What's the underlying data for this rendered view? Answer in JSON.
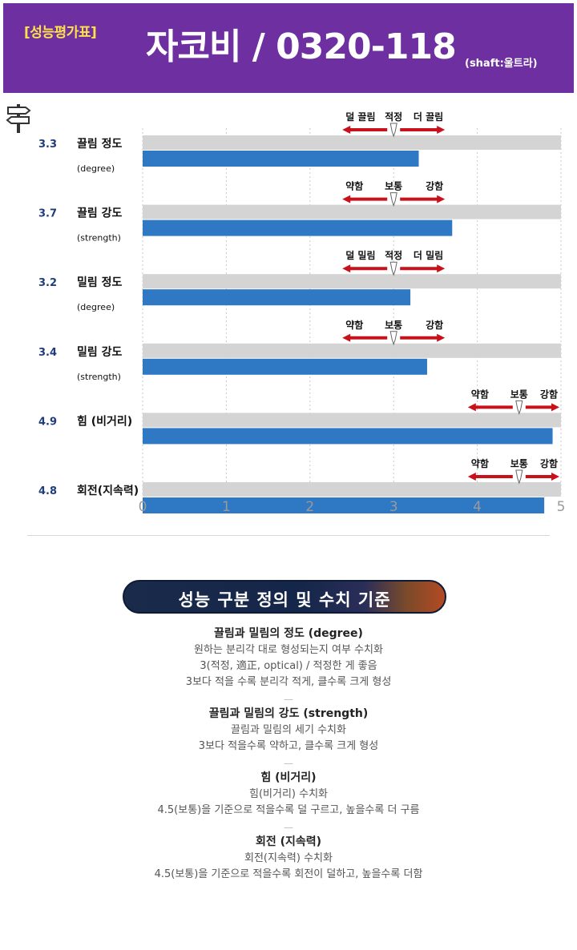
{
  "header": {
    "badge": "[성능평가표]",
    "title": "자코비 / 0320-118",
    "shaft": "(shaft:울트라)"
  },
  "chart_data": {
    "type": "bar",
    "orientation": "horizontal",
    "categories": [
      {
        "label": "끌림 정도",
        "sublabel": "(degree)",
        "value_label": "3.3",
        "scale": [
          "덜 끌림",
          "적정",
          "더 끌림"
        ],
        "scale_center": 3
      },
      {
        "label": "끌림 강도",
        "sublabel": "(strength)",
        "value_label": "3.7",
        "scale": [
          "약함",
          "보통",
          "강함"
        ],
        "scale_center": 3
      },
      {
        "label": "밀림 정도",
        "sublabel": "(degree)",
        "value_label": "3.2",
        "scale": [
          "덜 밀림",
          "적정",
          "더 밀림"
        ],
        "scale_center": 3
      },
      {
        "label": "밀림 강도",
        "sublabel": "(strength)",
        "value_label": "3.4",
        "scale": [
          "약함",
          "보통",
          "강함"
        ],
        "scale_center": 3
      },
      {
        "label": "힘 (비거리)",
        "sublabel": "",
        "value_label": "4.9",
        "scale": [
          "약함",
          "보통",
          "강함"
        ],
        "scale_center": 4.5
      },
      {
        "label": "회전(지속력)",
        "sublabel": "",
        "value_label": "4.8",
        "scale": [
          "약함",
          "보통",
          "강함"
        ],
        "scale_center": 4.5
      }
    ],
    "values": [
      3.3,
      3.7,
      3.2,
      3.4,
      4.9,
      4.8
    ],
    "xlim": [
      0,
      5
    ],
    "xticks": [
      "0",
      "1",
      "2",
      "3",
      "4",
      "5"
    ],
    "grid": "vertical dashed",
    "colors": {
      "bar": "#2e78c4",
      "track": "#d4d4d4",
      "arrow": "#c8111a",
      "value_label": "#1f3d7a"
    }
  },
  "banner": {
    "text": "성능 구분 정의 및 수치 기준"
  },
  "definitions": [
    {
      "title": "끌림과 밀림의 정도 (degree)",
      "lines": [
        "원하는 분리각 대로 형성되는지 여부 수치화",
        "3(적정, 適正, optical) / 적정한 게 좋음",
        "3보다 적을 수록 분리각 적게, 클수록 크게 형성"
      ]
    },
    {
      "title": "끌림과 밀림의 강도 (strength)",
      "lines": [
        "끌림과 밀림의 세기 수치화",
        "3보다 적을수록 약하고, 클수록 크게 형성"
      ]
    },
    {
      "title": "힘 (비거리)",
      "lines": [
        "힘(비거리) 수치화",
        "4.5(보통)을 기준으로 적을수록 덜 구르고, 높을수록 더 구름"
      ]
    },
    {
      "title": "회전 (지속력)",
      "lines": [
        "회전(지속력) 수치화",
        "4.5(보통)을 기준으로 적을수록 회전이 덜하고, 높을수록 더함"
      ]
    }
  ]
}
